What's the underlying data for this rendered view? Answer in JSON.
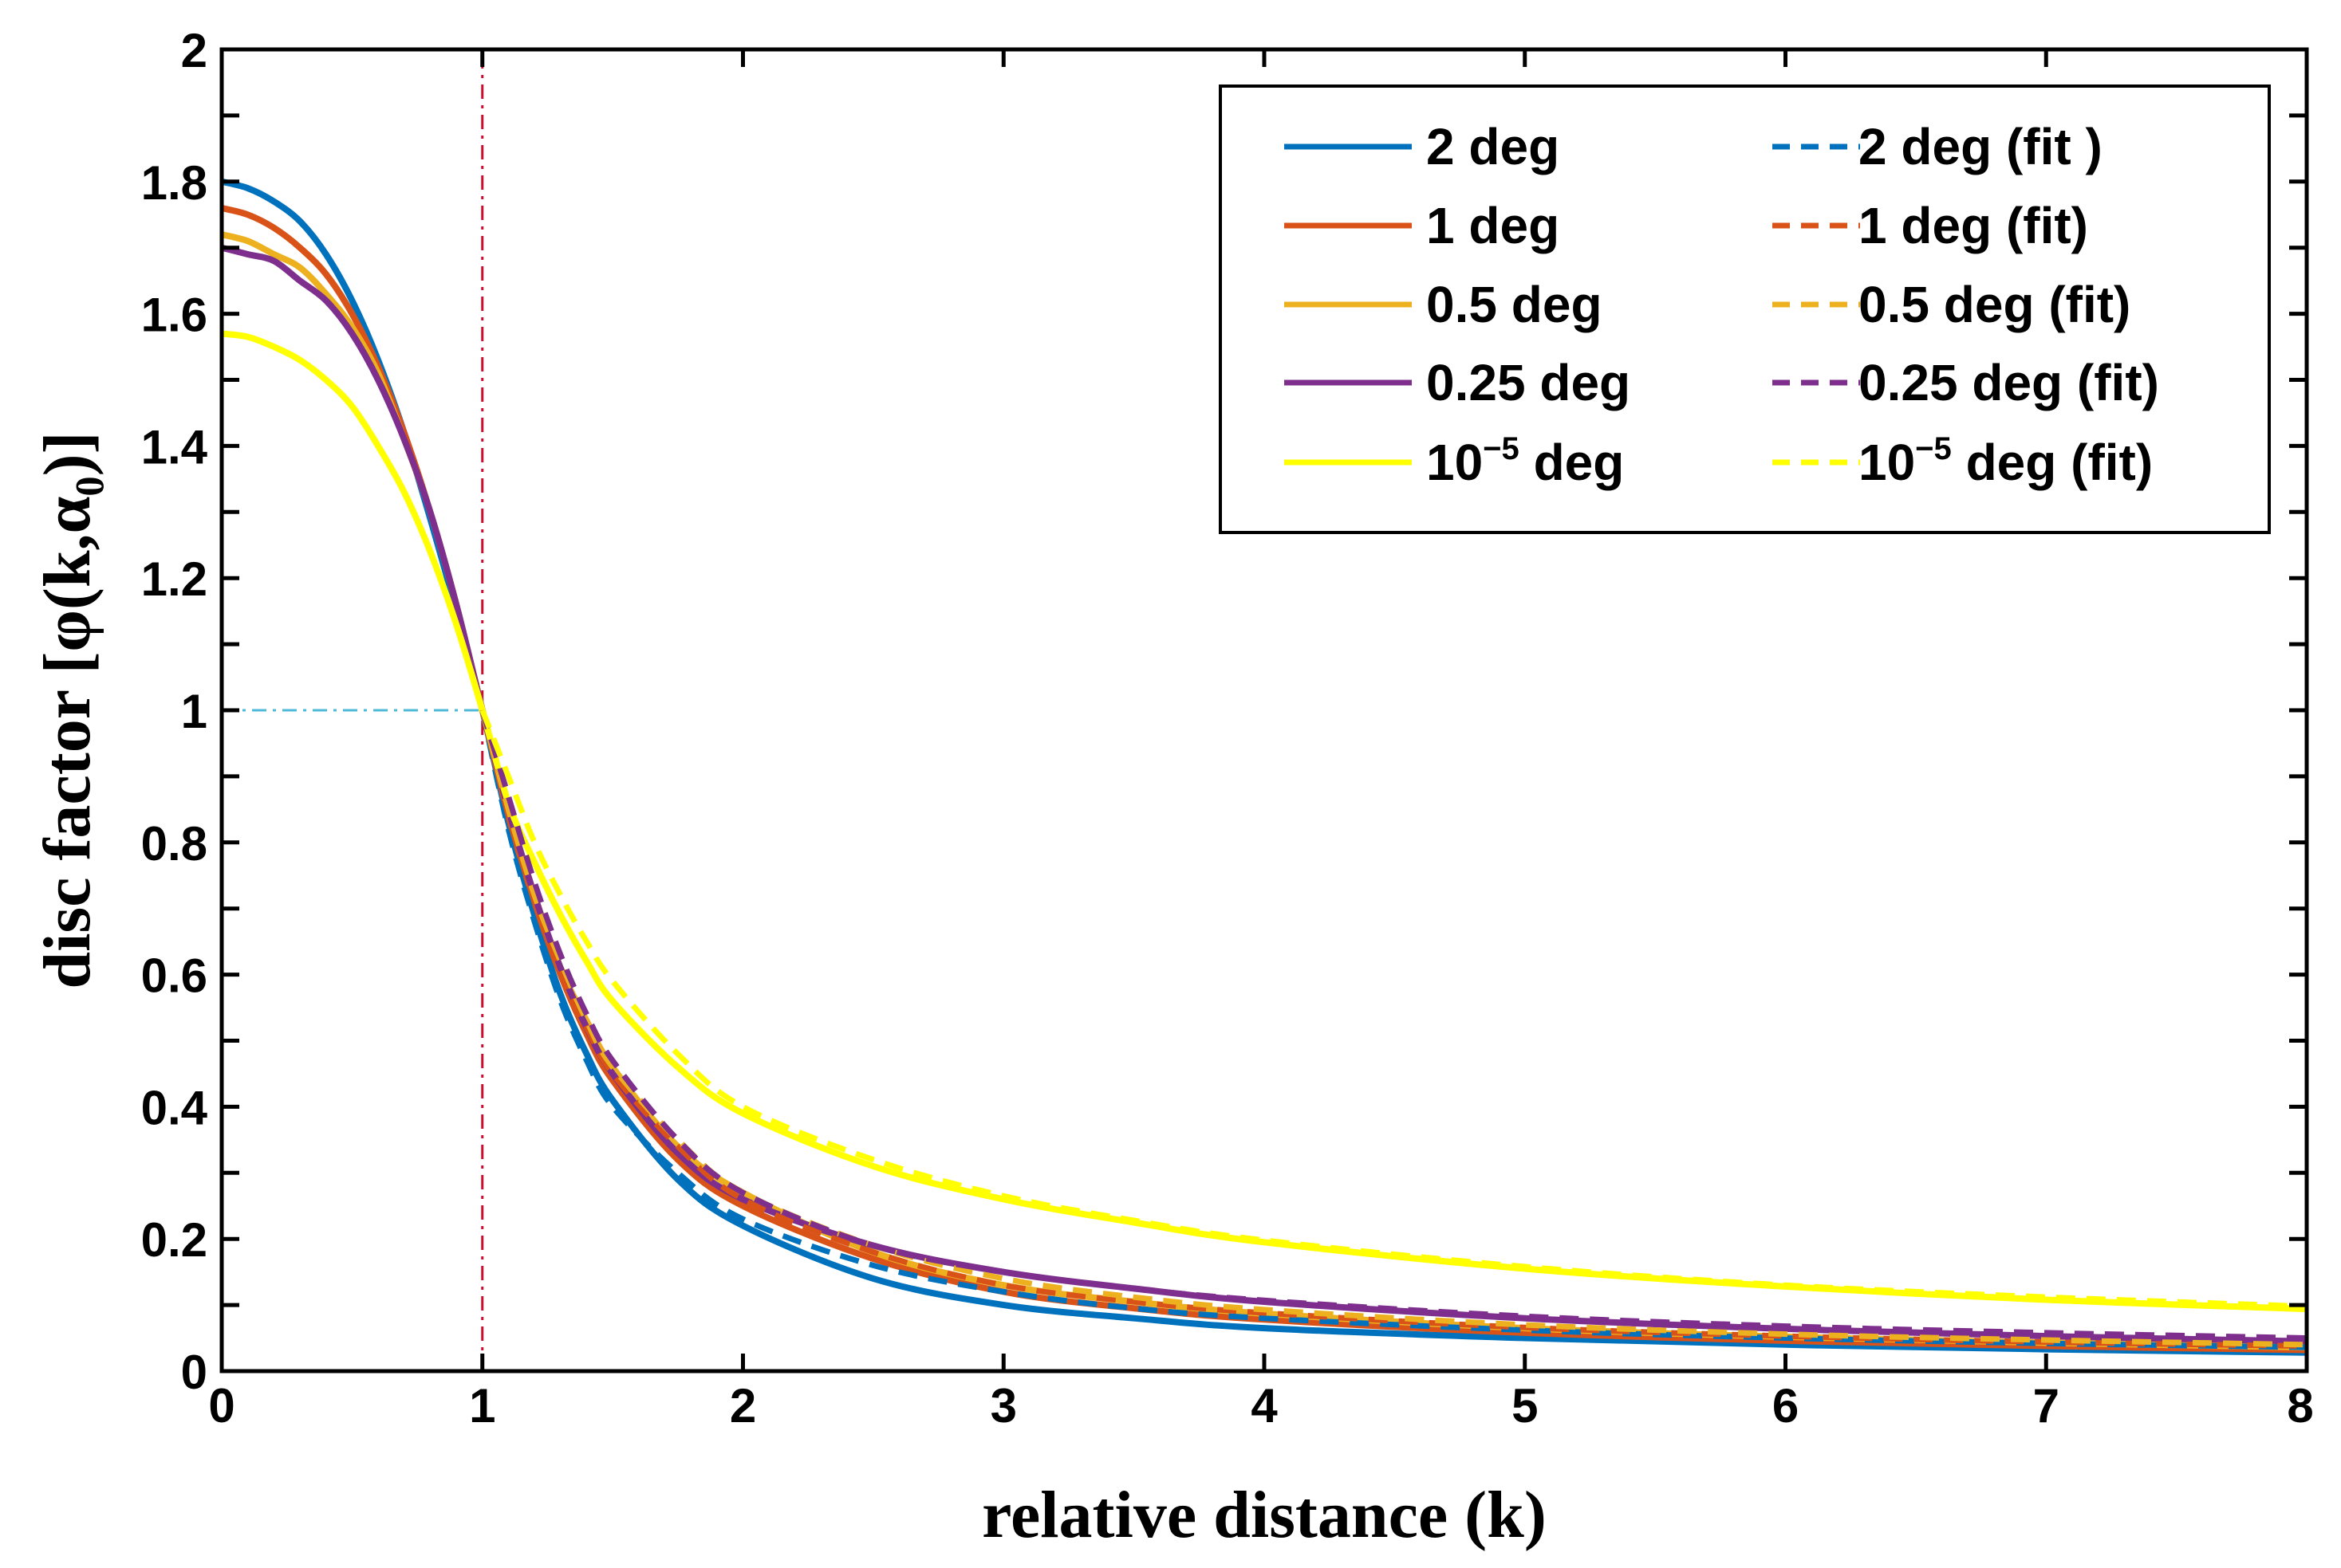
{
  "chart_data": {
    "type": "line",
    "title": "",
    "xlabel": "relative distance (k)",
    "ylabel": "disc factor [φ(k,α₀)]",
    "xlim": [
      0,
      8
    ],
    "ylim": [
      0,
      2
    ],
    "xticks": [
      "0",
      "1",
      "2",
      "3",
      "4",
      "5",
      "6",
      "7",
      "8"
    ],
    "yticks": [
      "0",
      "0.2",
      "0.4",
      "0.6",
      "0.8",
      "1",
      "1.2",
      "1.4",
      "1.6",
      "1.8",
      "2"
    ],
    "legend_position": "top-right",
    "reference_lines": [
      {
        "name": "k-equals-1-marker",
        "orientation": "vertical",
        "x": 1,
        "y_from": 0,
        "y_to": 2,
        "color": "#c8102e",
        "style": "dash-dot"
      },
      {
        "name": "phi-equals-1-marker",
        "orientation": "horizontal",
        "y": 1,
        "x_from": 0,
        "x_to": 1,
        "color": "#4db8d8",
        "style": "dash-dot"
      }
    ],
    "x": [
      0,
      0.1,
      0.2,
      0.3,
      0.4,
      0.5,
      0.6,
      0.7,
      0.8,
      0.9,
      1.0,
      1.1,
      1.2,
      1.3,
      1.4,
      1.5,
      1.75,
      2.0,
      2.5,
      3.0,
      3.5,
      4.0,
      5.0,
      6.0,
      7.0,
      8.0
    ],
    "series": [
      {
        "name": "2 deg",
        "label": "2 deg",
        "sup": "",
        "suffix": "",
        "color": "#0072bd",
        "style": "solid",
        "values": [
          1.8,
          1.79,
          1.77,
          1.74,
          1.69,
          1.62,
          1.53,
          1.42,
          1.29,
          1.15,
          1.0,
          0.83,
          0.69,
          0.57,
          0.48,
          0.41,
          0.29,
          0.22,
          0.14,
          0.1,
          0.08,
          0.065,
          0.05,
          0.04,
          0.033,
          0.028
        ]
      },
      {
        "name": "1 deg",
        "label": "1    deg",
        "sup": "",
        "suffix": "",
        "color": "#d95319",
        "style": "solid",
        "values": [
          1.76,
          1.75,
          1.73,
          1.7,
          1.66,
          1.6,
          1.52,
          1.42,
          1.3,
          1.16,
          1.0,
          0.84,
          0.71,
          0.6,
          0.51,
          0.44,
          0.32,
          0.25,
          0.17,
          0.12,
          0.095,
          0.078,
          0.058,
          0.046,
          0.038,
          0.032
        ]
      },
      {
        "name": "0.5 deg",
        "label": "0.5 deg",
        "sup": "",
        "suffix": "",
        "color": "#edb120",
        "style": "solid",
        "values": [
          1.72,
          1.71,
          1.69,
          1.67,
          1.63,
          1.58,
          1.51,
          1.41,
          1.3,
          1.16,
          1.0,
          0.85,
          0.72,
          0.61,
          0.53,
          0.46,
          0.34,
          0.27,
          0.18,
          0.13,
          0.105,
          0.087,
          0.065,
          0.052,
          0.043,
          0.036
        ]
      },
      {
        "name": "0.25 deg",
        "label": "0.25 deg",
        "sup": "",
        "suffix": "",
        "color": "#7e2f8e",
        "style": "solid",
        "values": [
          1.7,
          1.69,
          1.68,
          1.65,
          1.62,
          1.57,
          1.5,
          1.41,
          1.3,
          1.16,
          1.0,
          0.85,
          0.72,
          0.61,
          0.52,
          0.45,
          0.33,
          0.26,
          0.19,
          0.15,
          0.125,
          0.105,
          0.08,
          0.064,
          0.053,
          0.045
        ]
      },
      {
        "name": "1e-5 deg",
        "label": "10",
        "sup": "−5",
        "suffix": " deg",
        "color": "#ffff00",
        "style": "solid",
        "values": [
          1.57,
          1.565,
          1.55,
          1.53,
          1.5,
          1.46,
          1.4,
          1.33,
          1.24,
          1.13,
          1.0,
          0.86,
          0.77,
          0.69,
          0.62,
          0.56,
          0.46,
          0.39,
          0.31,
          0.26,
          0.225,
          0.195,
          0.155,
          0.128,
          0.108,
          0.094
        ]
      },
      {
        "name": "2 deg (fit)",
        "label": "2 deg (fit )",
        "sup": "",
        "suffix": "",
        "color": "#0072bd",
        "style": "dashed",
        "values": [
          null,
          null,
          null,
          null,
          null,
          null,
          null,
          null,
          null,
          null,
          1.0,
          0.82,
          0.68,
          0.56,
          0.47,
          0.4,
          0.3,
          0.23,
          0.16,
          0.12,
          0.095,
          0.08,
          0.062,
          0.05,
          0.042,
          0.036
        ]
      },
      {
        "name": "1 deg (fit)",
        "label": "1 deg (fit)",
        "sup": "",
        "suffix": "",
        "color": "#d95319",
        "style": "dashed",
        "values": [
          null,
          null,
          null,
          null,
          null,
          null,
          null,
          null,
          null,
          null,
          1.0,
          0.84,
          0.71,
          0.6,
          0.52,
          0.45,
          0.34,
          0.26,
          0.18,
          0.13,
          0.105,
          0.088,
          0.066,
          0.053,
          0.044,
          0.038
        ]
      },
      {
        "name": "0.5 deg (fit)",
        "label": "0.5 deg (fit)",
        "sup": "",
        "suffix": "",
        "color": "#edb120",
        "style": "dashed",
        "values": [
          null,
          null,
          null,
          null,
          null,
          null,
          null,
          null,
          null,
          null,
          1.0,
          0.85,
          0.72,
          0.62,
          0.53,
          0.46,
          0.35,
          0.27,
          0.19,
          0.14,
          0.112,
          0.093,
          0.07,
          0.056,
          0.047,
          0.04
        ]
      },
      {
        "name": "0.25 deg (fit)",
        "label": "0.25 deg (fit)",
        "sup": "",
        "suffix": "",
        "color": "#7e2f8e",
        "style": "dashed",
        "values": [
          null,
          null,
          null,
          null,
          null,
          null,
          null,
          null,
          null,
          null,
          1.0,
          0.87,
          0.74,
          0.63,
          0.54,
          0.47,
          0.35,
          0.27,
          0.19,
          0.15,
          0.125,
          0.107,
          0.083,
          0.068,
          0.058,
          0.05
        ]
      },
      {
        "name": "1e-5 deg (fit)",
        "label": "10",
        "sup": "−5",
        "suffix": " deg (fit)",
        "color": "#ffff00",
        "style": "dashed",
        "values": [
          null,
          null,
          null,
          null,
          null,
          null,
          null,
          null,
          null,
          null,
          1.0,
          0.9,
          0.8,
          0.72,
          0.65,
          0.59,
          0.48,
          0.4,
          0.32,
          0.265,
          0.228,
          0.198,
          0.158,
          0.13,
          0.112,
          0.098
        ]
      }
    ]
  }
}
